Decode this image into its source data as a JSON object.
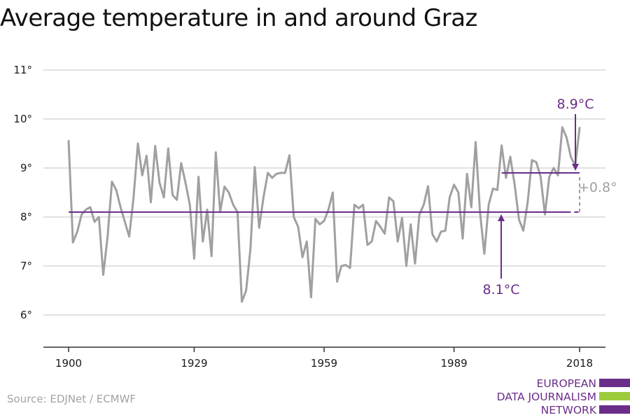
{
  "title": "Average temperature in and around Graz",
  "source": "Source: EDJNet / ECMWF",
  "logo": {
    "lines": [
      "EUROPEAN",
      "DATA JOURNALISM",
      "NETWORK"
    ],
    "colors": [
      "#6b2d8a",
      "#9ccc3c",
      "#6b2d8a"
    ]
  },
  "colors": {
    "series": "#a0a0a0",
    "accent": "#6b2d8a",
    "gray_annotation": "#a0a0a0",
    "grid": "#d9d9d9"
  },
  "chart_data": {
    "type": "line",
    "title": "Average temperature in and around Graz",
    "xlim": [
      1900,
      2018
    ],
    "ylim": [
      6,
      11
    ],
    "x_ticks": [
      1900,
      1929,
      1959,
      1989,
      2018
    ],
    "y_ticks": [
      6,
      7,
      8,
      9,
      10,
      11
    ],
    "y_tick_labels": [
      "6°",
      "7°",
      "8°",
      "9°",
      "10°",
      "11°"
    ],
    "grid": "horizontal",
    "series": [
      {
        "x": [
          1900,
          1901,
          1902,
          1903,
          1904,
          1905,
          1906,
          1907,
          1908,
          1909,
          1910,
          1911,
          1912,
          1913,
          1914,
          1915,
          1916,
          1917,
          1918,
          1919,
          1920,
          1921,
          1922,
          1923,
          1924,
          1925,
          1926,
          1927,
          1928,
          1929,
          1930,
          1931,
          1932,
          1933,
          1934,
          1935,
          1936,
          1937,
          1938,
          1939,
          1940,
          1941,
          1942,
          1943,
          1944,
          1945,
          1946,
          1947,
          1948,
          1949,
          1950,
          1951,
          1952,
          1953,
          1954,
          1955,
          1956,
          1957,
          1958,
          1959,
          1960,
          1961,
          1962,
          1963,
          1964,
          1965,
          1966,
          1967,
          1968,
          1969,
          1970,
          1971,
          1972,
          1973,
          1974,
          1975,
          1976,
          1977,
          1978,
          1979,
          1980,
          1981,
          1982,
          1983,
          1984,
          1985,
          1986,
          1987,
          1988,
          1989,
          1990,
          1991,
          1992,
          1993,
          1994,
          1995,
          1996,
          1997,
          1998,
          1999,
          2000,
          2001,
          2002,
          2003,
          2004,
          2005,
          2006,
          2007,
          2008,
          2009,
          2010,
          2011,
          2012,
          2013,
          2014,
          2015,
          2016,
          2017,
          2018
        ],
        "values": [
          9.55,
          7.48,
          7.7,
          8.05,
          8.15,
          8.2,
          7.9,
          8.0,
          6.82,
          7.6,
          8.72,
          8.55,
          8.2,
          7.9,
          7.6,
          8.4,
          9.5,
          8.85,
          9.25,
          8.3,
          9.45,
          8.7,
          8.4,
          9.4,
          8.45,
          8.35,
          9.1,
          8.7,
          8.25,
          7.15,
          8.82,
          7.5,
          8.15,
          7.2,
          9.32,
          8.1,
          8.62,
          8.5,
          8.25,
          8.1,
          6.27,
          6.5,
          7.35,
          9.02,
          7.78,
          8.4,
          8.9,
          8.8,
          8.88,
          8.9,
          8.9,
          9.26,
          8.0,
          7.8,
          7.18,
          7.5,
          6.36,
          7.96,
          7.85,
          7.92,
          8.15,
          8.5,
          6.68,
          7.0,
          7.02,
          6.96,
          8.25,
          8.18,
          8.25,
          7.43,
          7.5,
          7.92,
          7.8,
          7.66,
          8.4,
          8.32,
          7.5,
          7.98,
          7.0,
          7.85,
          7.05,
          8.05,
          8.25,
          8.63,
          7.65,
          7.5,
          7.7,
          7.72,
          8.4,
          8.66,
          8.5,
          7.56,
          8.88,
          8.2,
          9.53,
          8.1,
          7.25,
          8.25,
          8.58,
          8.55,
          9.46,
          8.8,
          9.23,
          8.66,
          7.95,
          7.72,
          8.3,
          9.16,
          9.12,
          8.82,
          8.05,
          8.82,
          9.0,
          8.85,
          9.83,
          9.62,
          9.22,
          9.05,
          9.82
        ]
      }
    ],
    "reference_lines": [
      {
        "label": "8.1°C",
        "value": 8.1,
        "from": 1900,
        "to": 2015
      },
      {
        "label": "8.9°C",
        "value": 8.9,
        "from": 2000,
        "to": 2018
      }
    ],
    "difference_label": "+0.8°"
  }
}
